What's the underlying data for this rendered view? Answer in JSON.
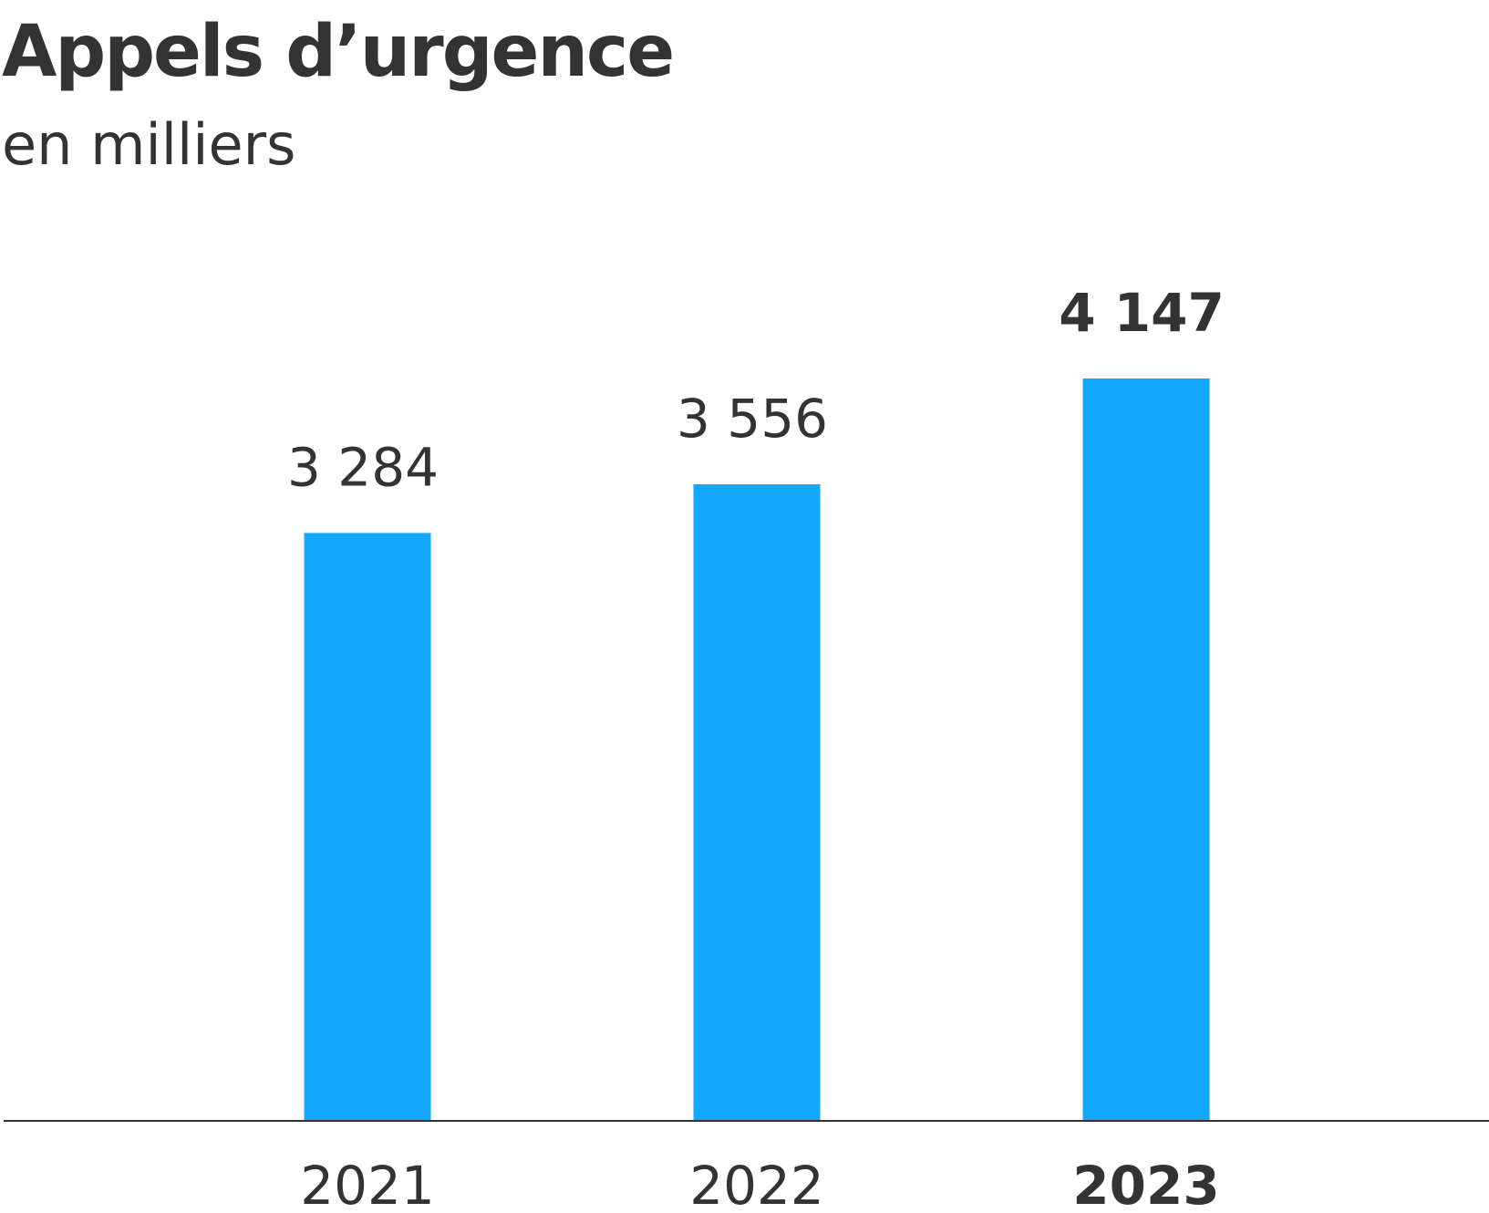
{
  "chart_data": {
    "type": "bar",
    "title": "Appels d’urgence",
    "subtitle": "en milliers",
    "categories": [
      "2021",
      "2022",
      "2023"
    ],
    "values": [
      3284,
      3556,
      4147
    ],
    "value_labels": [
      "3 284",
      "3 556",
      "4 147"
    ],
    "highlight": "2023",
    "ylim": [
      0,
      4147
    ],
    "xlabel": "",
    "ylabel": "",
    "grid": false,
    "legend": "none",
    "colors": {
      "bar": "#13a8fc",
      "text": "#333333",
      "axis": "#333333"
    }
  }
}
